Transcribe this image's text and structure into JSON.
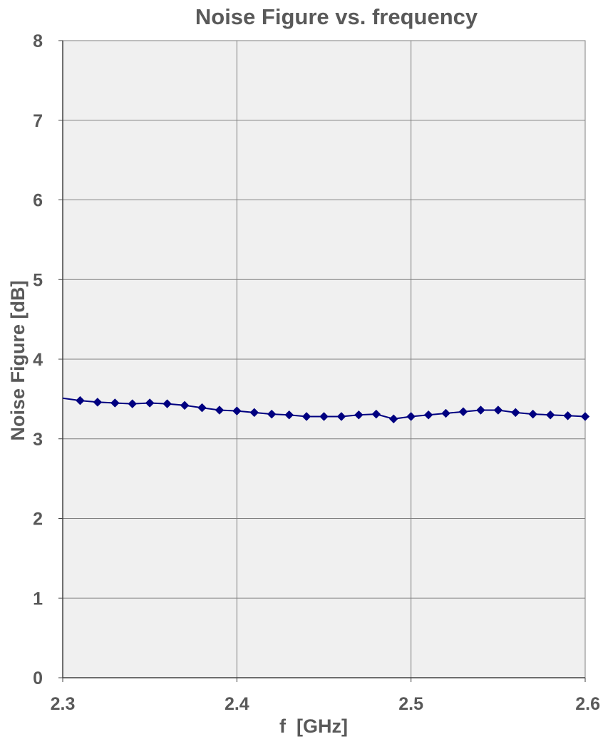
{
  "chart_data": {
    "type": "line",
    "title": "Noise Figure vs. frequency",
    "xlabel": "f  [GHz]",
    "ylabel": "Noise Figure [dB]",
    "xlim": [
      2.3,
      2.6
    ],
    "ylim": [
      0,
      8
    ],
    "x_ticks": [
      "2.3",
      "2.4",
      "2.5",
      "2.6"
    ],
    "y_ticks": [
      "0",
      "1",
      "2",
      "3",
      "4",
      "5",
      "6",
      "7",
      "8"
    ],
    "grid": true,
    "series": [
      {
        "x": [
          2.3,
          2.31,
          2.32,
          2.33,
          2.34,
          2.35,
          2.36,
          2.37,
          2.38,
          2.39,
          2.4,
          2.41,
          2.42,
          2.43,
          2.44,
          2.45,
          2.46,
          2.47,
          2.48,
          2.49,
          2.5,
          2.51,
          2.52,
          2.53,
          2.54,
          2.55,
          2.56,
          2.57,
          2.58,
          2.59,
          2.6
        ],
        "values": [
          3.51,
          3.48,
          3.46,
          3.45,
          3.44,
          3.45,
          3.44,
          3.42,
          3.39,
          3.36,
          3.35,
          3.33,
          3.31,
          3.3,
          3.28,
          3.28,
          3.28,
          3.3,
          3.31,
          3.25,
          3.28,
          3.3,
          3.32,
          3.34,
          3.36,
          3.36,
          3.33,
          3.31,
          3.3,
          3.29,
          3.28
        ],
        "marker_from_index": 1
      }
    ],
    "colors": {
      "series": "#000080",
      "plot_background": "#f0f0f0",
      "grid": "#808080",
      "text": "#595959"
    }
  }
}
